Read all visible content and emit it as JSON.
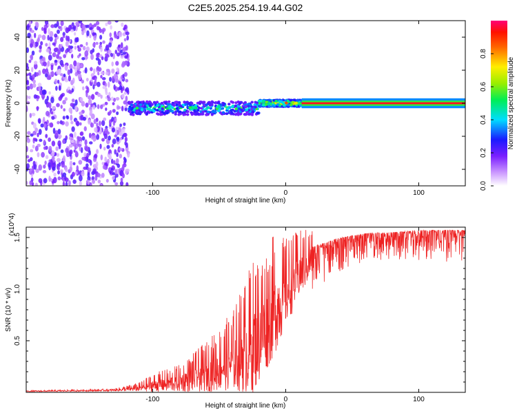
{
  "title": "C2E5.2025.254.19.44.G02",
  "chart_data": [
    {
      "type": "heatmap",
      "name": "spectrogram",
      "xlabel": "Height of straight line (km)",
      "ylabel": "Frequency (Hz)",
      "xlim": [
        -195,
        135
      ],
      "ylim": [
        -50,
        50
      ],
      "xticks": [
        -100,
        0,
        100
      ],
      "yticks": [
        -40,
        -20,
        0,
        20,
        40
      ],
      "colorbar": {
        "label": "Normalized spectral amplitude",
        "range": [
          0,
          1
        ],
        "ticks": [
          0.0,
          0.2,
          0.4,
          0.6,
          0.8
        ]
      },
      "regions": [
        {
          "kind": "noise",
          "x_range": [
            -195,
            -118
          ],
          "f_range": [
            -50,
            50
          ],
          "amplitude": 0.15
        },
        {
          "kind": "signal-band",
          "x_range": [
            -118,
            -20
          ],
          "f_center": -3,
          "f_halfwidth": 4,
          "amplitude": 0.5
        },
        {
          "kind": "signal-band",
          "x_range": [
            -20,
            12
          ],
          "f_center": 0,
          "f_halfwidth": 2,
          "amplitude": 0.75
        },
        {
          "kind": "carrier-line",
          "x_range": [
            12,
            135
          ],
          "f_center": 0,
          "f_halfwidth": 1,
          "amplitude": 0.95
        }
      ]
    },
    {
      "type": "line",
      "name": "snr",
      "xlabel": "Height of straight line (km)",
      "ylabel": "SNR (10 * v/v)",
      "scale_note": "(x10^4)",
      "xlim": [
        -195,
        135
      ],
      "ylim": [
        0,
        1.6
      ],
      "xticks": [
        -100,
        0,
        100
      ],
      "yticks": [
        0.5,
        1.0,
        1.5
      ],
      "color": "#ee2222",
      "envelope": {
        "x": [
          -195,
          -130,
          -110,
          -100,
          -80,
          -60,
          -40,
          -25,
          -10,
          0,
          10,
          20,
          40,
          60,
          80,
          100,
          120,
          135
        ],
        "baseline": [
          0.01,
          0.02,
          0.04,
          0.07,
          0.1,
          0.18,
          0.3,
          0.45,
          0.75,
          0.95,
          1.15,
          1.3,
          1.42,
          1.48,
          1.49,
          1.5,
          1.5,
          1.5
        ],
        "spike_amplitude": [
          0.005,
          0.01,
          0.04,
          0.08,
          0.12,
          0.22,
          0.35,
          0.6,
          0.55,
          0.4,
          0.3,
          0.22,
          0.15,
          0.12,
          0.12,
          0.14,
          0.14,
          0.14
        ]
      }
    }
  ]
}
